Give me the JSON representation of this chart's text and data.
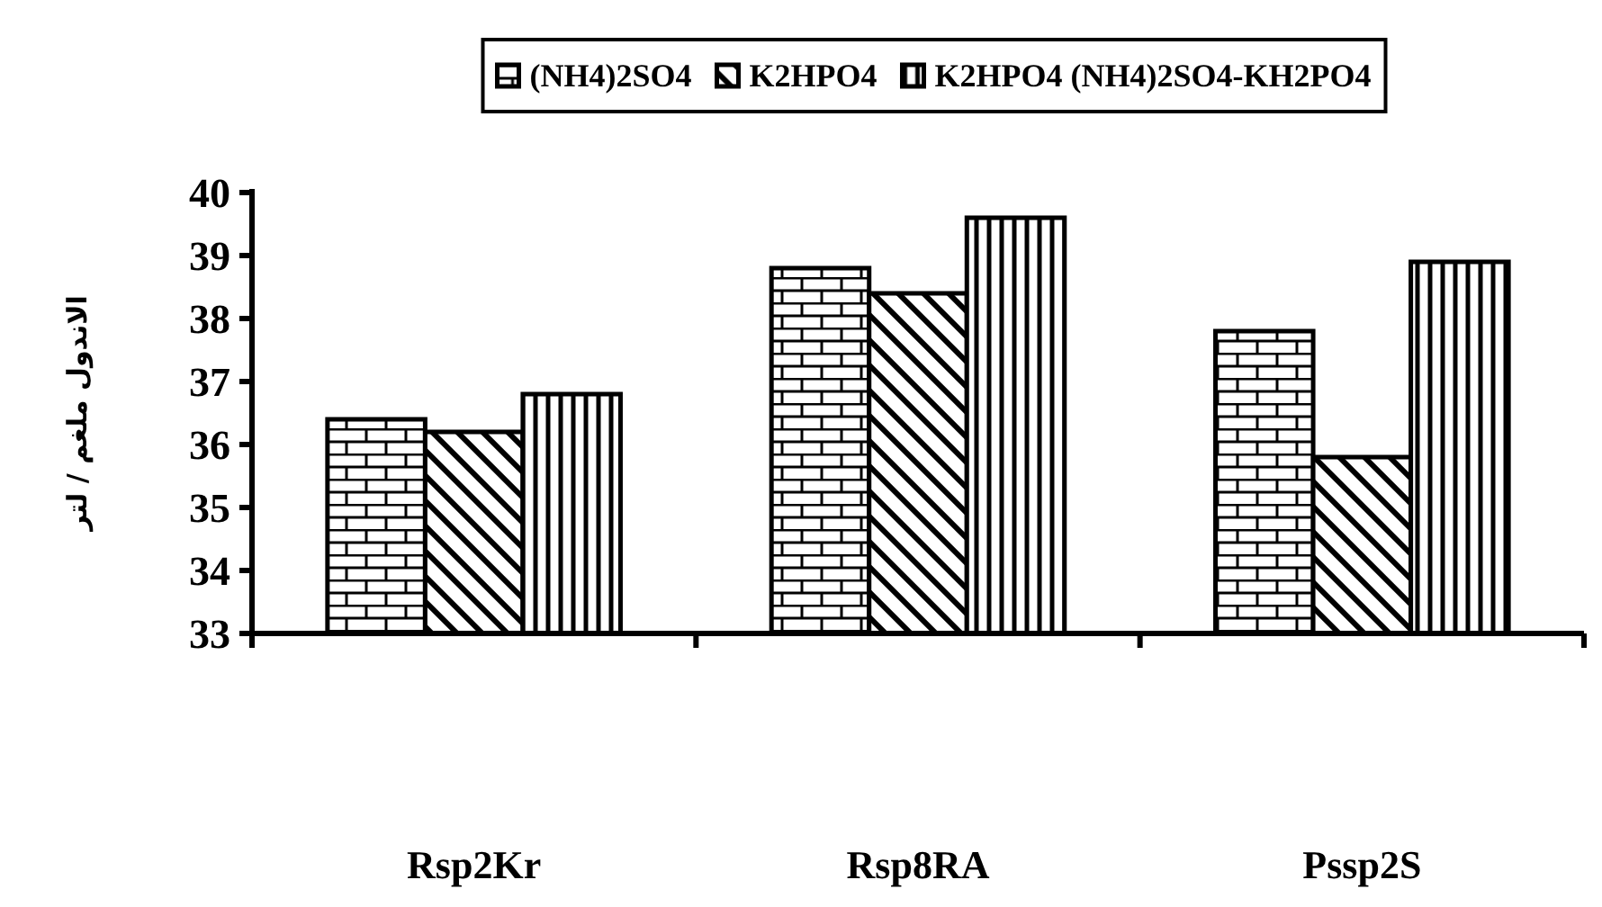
{
  "chart_data": {
    "type": "bar",
    "ylabel": "الاندول ملغم / لتر",
    "categories": [
      "Rsp2Kr",
      "Rsp8RA",
      "Pssp2S"
    ],
    "series": [
      {
        "name": "(NH4)2SO4",
        "color": "#000000",
        "values": [
          36.4,
          38.8,
          37.8
        ]
      },
      {
        "name": "K2HPO4",
        "color": "#000000",
        "values": [
          36.2,
          38.4,
          35.8
        ]
      },
      {
        "name": "K2HPO4 (NH4)2SO4-KH2PO4",
        "color": "#000000",
        "values": [
          36.8,
          39.6,
          38.9
        ]
      }
    ],
    "ylim": [
      33,
      40
    ],
    "yticks": [
      33,
      34,
      35,
      36,
      37,
      38,
      39,
      40
    ],
    "legend": "top"
  }
}
